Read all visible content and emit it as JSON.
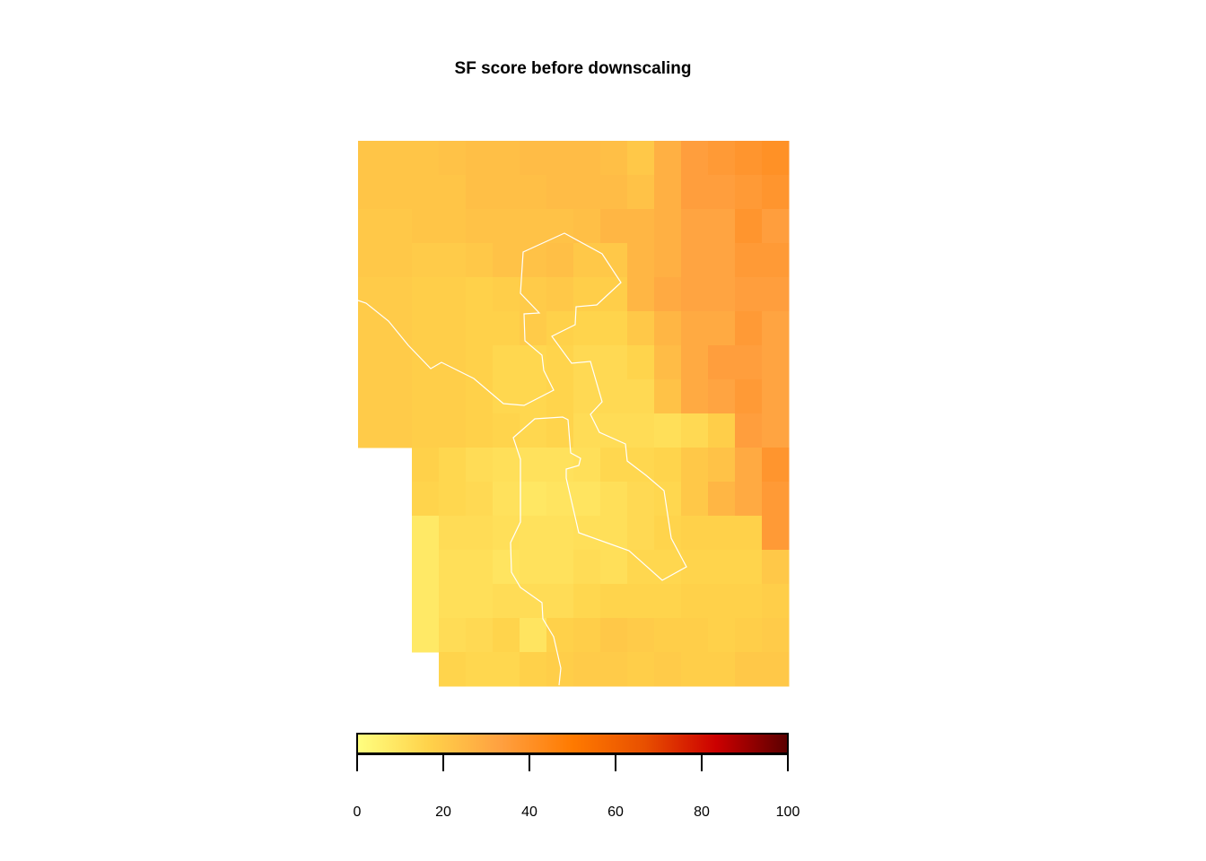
{
  "chart_data": {
    "type": "heatmap",
    "title": "SF score before downscaling",
    "xlabel": "",
    "ylabel": "",
    "grid": false,
    "n_cols": 16,
    "n_rows": 16,
    "cells": [
      [
        21,
        21,
        21,
        22,
        23,
        23,
        24,
        24,
        24,
        23,
        20,
        28,
        34,
        36,
        38,
        40
      ],
      [
        21,
        21,
        21,
        21,
        23,
        23,
        23,
        24,
        24,
        24,
        22,
        28,
        34,
        34,
        36,
        38
      ],
      [
        20,
        20,
        21,
        21,
        22,
        22,
        22,
        22,
        23,
        26,
        26,
        28,
        32,
        32,
        38,
        34
      ],
      [
        20,
        20,
        19,
        19,
        20,
        22,
        22,
        23,
        20,
        20,
        26,
        28,
        32,
        32,
        36,
        36
      ],
      [
        19,
        19,
        18,
        18,
        17,
        18,
        19,
        20,
        18,
        18,
        26,
        30,
        32,
        32,
        34,
        34
      ],
      [
        19,
        19,
        18,
        18,
        17,
        17,
        19,
        17,
        16,
        16,
        20,
        26,
        30,
        30,
        36,
        32
      ],
      [
        19,
        19,
        18,
        18,
        17,
        15,
        15,
        16,
        14,
        14,
        16,
        24,
        30,
        34,
        34,
        32
      ],
      [
        19,
        19,
        18,
        18,
        17,
        15,
        15,
        16,
        14,
        14,
        14,
        22,
        30,
        32,
        36,
        32
      ],
      [
        19,
        19,
        18,
        18,
        17,
        16,
        15,
        16,
        13,
        13,
        13,
        12,
        14,
        18,
        34,
        32
      ],
      [
        null,
        null,
        17,
        15,
        13,
        12,
        11,
        11,
        12,
        15,
        15,
        16,
        20,
        22,
        30,
        38
      ],
      [
        null,
        null,
        16,
        15,
        14,
        11,
        9,
        10,
        10,
        12,
        14,
        15,
        20,
        26,
        30,
        36
      ],
      [
        null,
        null,
        8,
        13,
        13,
        12,
        11,
        11,
        12,
        12,
        14,
        16,
        17,
        17,
        17,
        36
      ],
      [
        null,
        null,
        8,
        12,
        12,
        10,
        11,
        11,
        13,
        12,
        15,
        15,
        16,
        16,
        16,
        20
      ],
      [
        null,
        null,
        8,
        12,
        12,
        13,
        13,
        13,
        15,
        16,
        16,
        16,
        17,
        17,
        17,
        18
      ],
      [
        null,
        null,
        8,
        13,
        14,
        16,
        10,
        17,
        18,
        20,
        19,
        18,
        18,
        17,
        18,
        19
      ],
      [
        null,
        null,
        null,
        16,
        15,
        15,
        17,
        18,
        19,
        19,
        18,
        19,
        18,
        18,
        20,
        20
      ]
    ],
    "bottom_row_extra": [
      null,
      null,
      null,
      8,
      14,
      14,
      15,
      16,
      16,
      16,
      16,
      16,
      16,
      17,
      20,
      20
    ],
    "legend": {
      "range": [
        0,
        100
      ],
      "ticks": [
        0,
        20,
        40,
        60,
        80,
        100
      ],
      "colors": [
        "#FFFF80",
        "#FFD24A",
        "#FFA040",
        "#FF7A00",
        "#E85000",
        "#CC0000",
        "#5A0000"
      ]
    },
    "boundary_color": "#FFFFFF"
  }
}
